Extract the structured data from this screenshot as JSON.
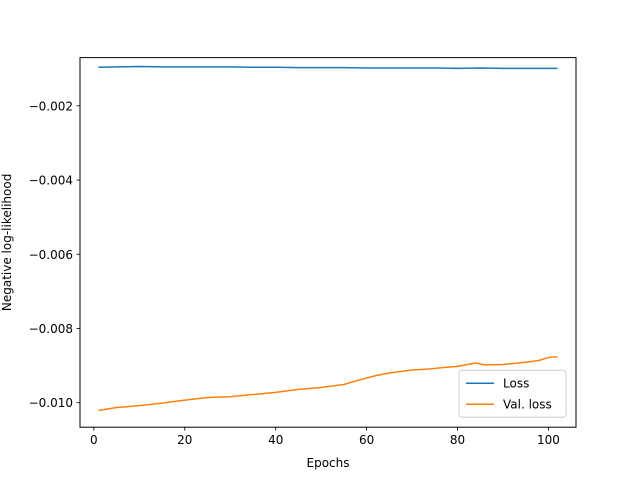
{
  "chart_data": {
    "type": "line",
    "title": "",
    "xlabel": "Epochs",
    "ylabel": "Negative log-likelihood",
    "xlim": [
      -3.05,
      106.05
    ],
    "ylim": [
      -0.01066,
      -0.0007
    ],
    "xticks": [
      0,
      20,
      40,
      60,
      80,
      100
    ],
    "xtick_labels": [
      "0",
      "20",
      "40",
      "60",
      "80",
      "100"
    ],
    "yticks": [
      -0.01,
      -0.008,
      -0.006,
      -0.004,
      -0.002
    ],
    "ytick_labels": [
      "−0.010",
      "−0.008",
      "−0.006",
      "−0.004",
      "−0.002"
    ],
    "grid": false,
    "legend_position": "lower-right",
    "series": [
      {
        "name": "Loss",
        "color": "#1f77b4",
        "x": [
          1,
          5,
          10,
          15,
          20,
          25,
          30,
          35,
          40,
          45,
          50,
          55,
          60,
          65,
          70,
          75,
          80,
          85,
          90,
          95,
          100,
          102
        ],
        "y": [
          -0.00096,
          -0.00095,
          -0.00094,
          -0.00095,
          -0.00095,
          -0.00095,
          -0.00095,
          -0.00096,
          -0.00096,
          -0.00097,
          -0.00097,
          -0.00097,
          -0.00098,
          -0.00098,
          -0.00098,
          -0.00098,
          -0.00099,
          -0.00098,
          -0.00099,
          -0.00099,
          -0.00099,
          -0.00099
        ]
      },
      {
        "name": "Val. loss",
        "color": "#ff7f0e",
        "x": [
          1,
          5,
          10,
          15,
          20,
          25,
          30,
          35,
          40,
          45,
          50,
          55,
          58,
          62,
          65,
          70,
          73,
          77,
          80,
          84,
          86,
          90,
          95,
          98,
          100,
          102
        ],
        "y": [
          -0.01021,
          -0.01013,
          -0.01008,
          -0.01001,
          -0.00993,
          -0.00986,
          -0.00984,
          -0.00978,
          -0.00972,
          -0.00964,
          -0.00959,
          -0.00951,
          -0.0094,
          -0.00927,
          -0.0092,
          -0.00912,
          -0.0091,
          -0.00905,
          -0.00902,
          -0.00893,
          -0.00898,
          -0.00897,
          -0.00891,
          -0.00886,
          -0.00878,
          -0.00876
        ]
      }
    ]
  }
}
